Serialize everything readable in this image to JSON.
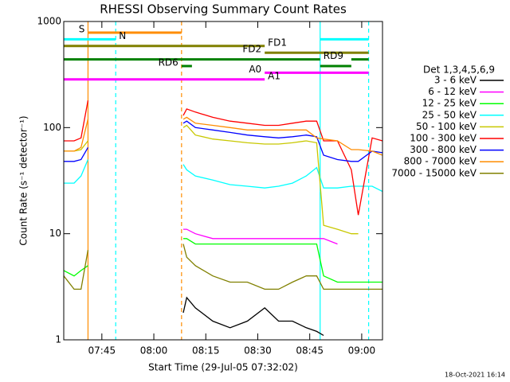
{
  "chart_data": {
    "type": "line",
    "title": "RHESSI Observing Summary Count Rates",
    "xlabel": "Start Time (29-Jul-05 07:32:02)",
    "ylabel": "Count Rate (s⁻¹ detector⁻¹)",
    "timestamp": "18-Oct-2021 16:14",
    "legend_title": "Det 1,3,4,5,6,9",
    "log_y": true,
    "xlim": [
      454,
      546
    ],
    "xticks": [
      {
        "value": 465,
        "label": "07:45"
      },
      {
        "value": 480,
        "label": "08:00"
      },
      {
        "value": 495,
        "label": "08:15"
      },
      {
        "value": 510,
        "label": "08:30"
      },
      {
        "value": 525,
        "label": "08:45"
      },
      {
        "value": 540,
        "label": "09:00"
      }
    ],
    "ylim": [
      1,
      1000
    ],
    "yticks": [
      1,
      10,
      100,
      1000
    ],
    "x": [
      454,
      457,
      459,
      461,
      470,
      488.5,
      489.5,
      492,
      497,
      502,
      507,
      512,
      516,
      520,
      524,
      527,
      529,
      533,
      537,
      539,
      543,
      546
    ],
    "series": [
      {
        "name": "3 - 6 keV",
        "color": "#000000",
        "values": [
          null,
          null,
          null,
          null,
          null,
          1.8,
          2.5,
          2,
          1.5,
          1.3,
          1.5,
          2,
          1.5,
          1.5,
          1.3,
          1.2,
          1.1,
          null,
          null,
          null,
          null,
          null
        ]
      },
      {
        "name": "6 - 12 keV",
        "color": "#ff00ff",
        "values": [
          null,
          null,
          null,
          null,
          null,
          11,
          11,
          10,
          9,
          9,
          9,
          9,
          9,
          9,
          9,
          9,
          9,
          8,
          null,
          null,
          null,
          null
        ]
      },
      {
        "name": "12 - 25 keV",
        "color": "#00ff00",
        "values": [
          4.5,
          4,
          4.5,
          5,
          null,
          9,
          9,
          8,
          8,
          8,
          8,
          8,
          8,
          8,
          8,
          8,
          4,
          3.5,
          3.5,
          3.5,
          3.5,
          3.5
        ]
      },
      {
        "name": "25 - 50 keV",
        "color": "#00ffff",
        "values": [
          30,
          30,
          35,
          50,
          null,
          45,
          40,
          35,
          32,
          29,
          28,
          27,
          28,
          30,
          35,
          42,
          27,
          27,
          28,
          28,
          28,
          25
        ]
      },
      {
        "name": "50 - 100 keV",
        "color": "#c8c800",
        "values": [
          60,
          60,
          62,
          75,
          null,
          100,
          105,
          85,
          78,
          75,
          72,
          70,
          70,
          72,
          75,
          72,
          12,
          11,
          10,
          10,
          null,
          null
        ]
      },
      {
        "name": "100 - 300 keV",
        "color": "#ff0000",
        "values": [
          75,
          75,
          80,
          180,
          null,
          130,
          150,
          140,
          125,
          115,
          110,
          105,
          105,
          110,
          115,
          115,
          75,
          75,
          40,
          15,
          80,
          75
        ]
      },
      {
        "name": "300 - 800 keV",
        "color": "#0000ff",
        "values": [
          48,
          48,
          50,
          65,
          null,
          110,
          115,
          100,
          95,
          90,
          85,
          82,
          80,
          82,
          85,
          82,
          55,
          50,
          48,
          48,
          60,
          58
        ]
      },
      {
        "name": "800 - 7000 keV",
        "color": "#ff8c00",
        "values": [
          60,
          60,
          65,
          120,
          null,
          120,
          125,
          110,
          105,
          100,
          95,
          95,
          95,
          95,
          95,
          80,
          78,
          75,
          62,
          62,
          60,
          55
        ]
      },
      {
        "name": "7000 - 15000 keV",
        "color": "#808000",
        "values": [
          4,
          3,
          3,
          7,
          null,
          8,
          6,
          5,
          4,
          3.5,
          3.5,
          3,
          3,
          3.5,
          4,
          4,
          3,
          3,
          3,
          3,
          3,
          3
        ]
      }
    ],
    "flags": [
      {
        "label": "S",
        "color": "#ff8c00",
        "intervals": [
          [
            461,
            488
          ]
        ]
      },
      {
        "label": "N",
        "color": "#00ffff",
        "intervals": [
          [
            454,
            469
          ],
          [
            528,
            542
          ]
        ]
      },
      {
        "label": "FD1",
        "color": "#808000",
        "intervals": [
          [
            454,
            512
          ]
        ]
      },
      {
        "label": "FD2",
        "color": "#808000",
        "intervals": [
          [
            512,
            542
          ]
        ]
      },
      {
        "label": "RD9",
        "color": "#008000",
        "intervals": [
          [
            454,
            528
          ],
          [
            537,
            542
          ]
        ]
      },
      {
        "label": "RD6",
        "color": "#008000",
        "intervals": [
          [
            488,
            491
          ],
          [
            528,
            537
          ]
        ]
      },
      {
        "label": "A0",
        "color": "#ff00ff",
        "intervals": [
          [
            512,
            542
          ]
        ]
      },
      {
        "label": "A1",
        "color": "#ff00ff",
        "intervals": [
          [
            454,
            512
          ]
        ]
      }
    ],
    "vlines": [
      {
        "x": 461,
        "color": "#ff8c00",
        "dashed": false
      },
      {
        "x": 469,
        "color": "#00ffff",
        "dashed": true
      },
      {
        "x": 488,
        "color": "#ff8c00",
        "dashed": true
      },
      {
        "x": 528,
        "color": "#00ffff",
        "dashed": false
      },
      {
        "x": 542,
        "color": "#00ffff",
        "dashed": true
      }
    ]
  }
}
